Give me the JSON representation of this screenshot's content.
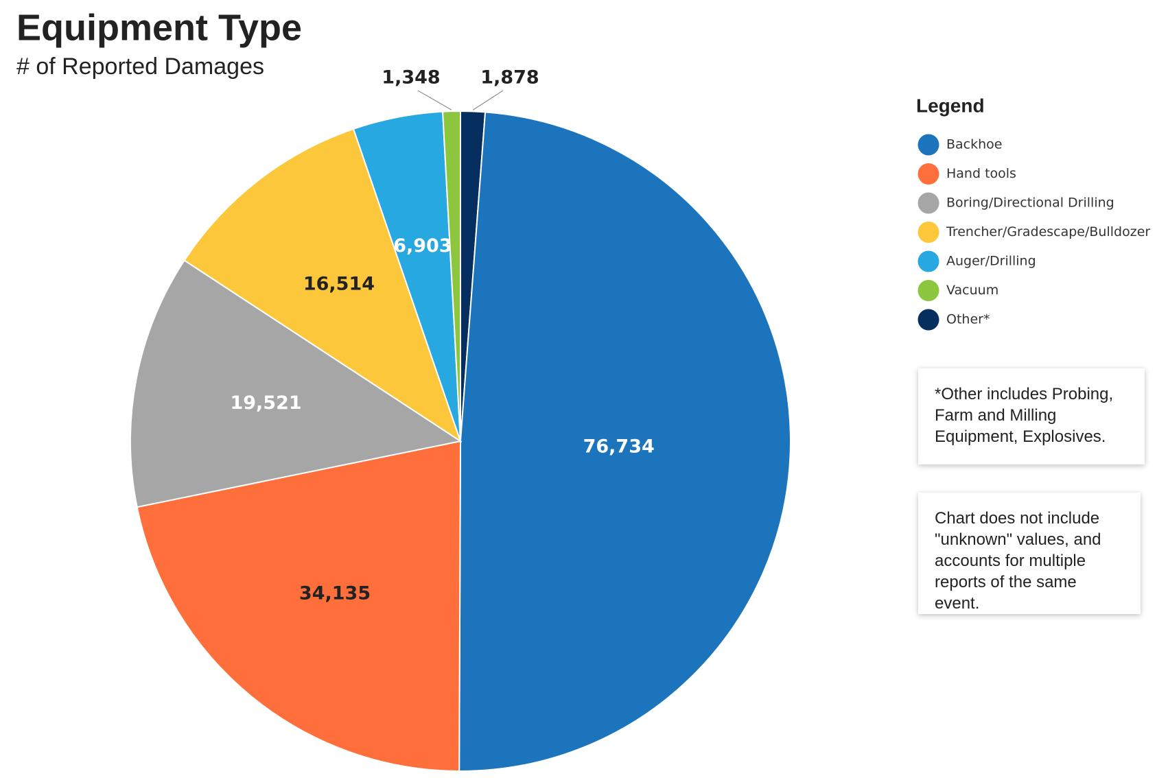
{
  "chart_data": {
    "type": "pie",
    "title": "Equipment Type",
    "subtitle": "# of Reported Damages",
    "legend_title": "Legend",
    "legend_position": "right",
    "categories": [
      "Backhoe",
      "Hand tools",
      "Boring/Directional Drilling",
      "Trencher/Gradescape/Bulldozer",
      "Auger/Drilling",
      "Vacuum",
      "Other*"
    ],
    "values": [
      76734,
      34135,
      19521,
      16514,
      6903,
      1348,
      1878
    ],
    "value_labels": [
      "76,734",
      "34,135",
      "19,521",
      "16,514",
      "6,903",
      "1,348",
      "1,878"
    ],
    "colors": [
      "#1c75bc",
      "#ff6f3c",
      "#a6a6a6",
      "#fcc73b",
      "#27a8e0",
      "#8cc63f",
      "#062f5f"
    ],
    "notes": [
      "*Other includes Probing, Farm and Milling Equipment, Explosives.",
      "Chart does not include \"unknown\" values, and accounts for multiple reports of the same event."
    ]
  }
}
